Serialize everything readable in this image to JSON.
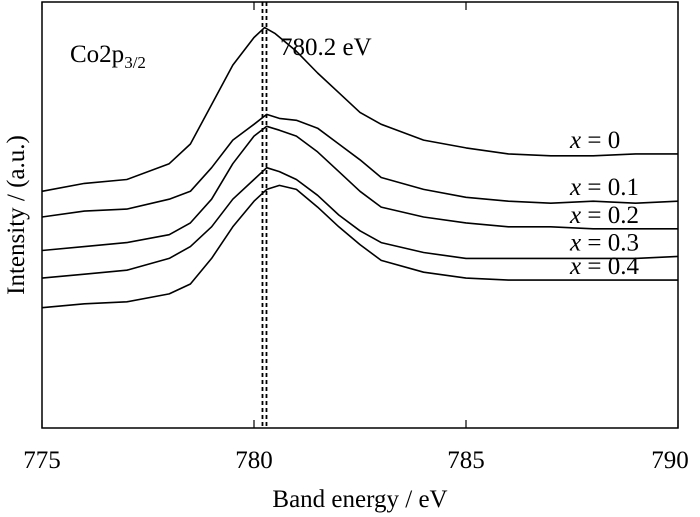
{
  "chart_data": {
    "type": "line",
    "title": "",
    "xlabel": "Band energy / eV",
    "ylabel": "Intensity / (a.u.)",
    "xlim": [
      775,
      790
    ],
    "ylim": [
      0,
      10.8
    ],
    "xticks": [
      "775",
      "780",
      "785",
      "790"
    ],
    "y_tick_labels_shown": false,
    "grid": false,
    "annotations": {
      "element_label": "Co2p",
      "element_subscript": "3/2",
      "peak_label": "780.2 eV",
      "peak_position": 780.2
    },
    "series": [
      {
        "label_var": "x",
        "label_value": "= 0",
        "x": [
          775,
          776,
          777,
          778,
          778.5,
          779,
          779.5,
          780,
          780.25,
          780.5,
          781,
          781.5,
          782,
          782.5,
          783,
          784,
          785,
          786,
          787,
          788,
          789,
          790
        ],
        "y": [
          6.0,
          6.2,
          6.3,
          6.7,
          7.2,
          8.2,
          9.2,
          9.9,
          10.15,
          10.0,
          9.55,
          9.0,
          8.5,
          8.0,
          7.7,
          7.3,
          7.1,
          6.95,
          6.9,
          6.9,
          6.95,
          6.95
        ]
      },
      {
        "label_var": "x",
        "label_value": "= 0.1",
        "x": [
          775,
          776,
          777,
          778,
          778.5,
          779,
          779.5,
          780,
          780.3,
          780.6,
          781,
          781.5,
          782,
          782.5,
          783,
          784,
          785,
          786,
          787,
          788,
          789,
          790
        ],
        "y": [
          5.35,
          5.5,
          5.55,
          5.8,
          6.0,
          6.6,
          7.3,
          7.7,
          7.95,
          7.85,
          7.8,
          7.6,
          7.2,
          6.8,
          6.35,
          6.05,
          5.85,
          5.75,
          5.7,
          5.75,
          5.7,
          5.75
        ]
      },
      {
        "label_var": "x",
        "label_value": "= 0.2",
        "x": [
          775,
          776,
          777,
          778,
          778.5,
          779,
          779.5,
          780,
          780.3,
          780.6,
          781,
          781.5,
          782,
          782.5,
          783,
          784,
          785,
          786,
          787,
          788,
          789,
          790
        ],
        "y": [
          4.5,
          4.6,
          4.7,
          4.9,
          5.2,
          5.8,
          6.7,
          7.4,
          7.65,
          7.55,
          7.4,
          7.0,
          6.5,
          6.0,
          5.6,
          5.35,
          5.2,
          5.1,
          5.1,
          5.05,
          5.05,
          5.05
        ]
      },
      {
        "label_var": "x",
        "label_value": "= 0.3",
        "x": [
          775,
          776,
          777,
          778,
          778.5,
          779,
          779.5,
          780,
          780.3,
          780.6,
          781,
          781.5,
          782,
          782.5,
          783,
          784,
          785,
          786,
          787,
          788,
          789,
          790
        ],
        "y": [
          3.8,
          3.9,
          4.0,
          4.3,
          4.6,
          5.1,
          5.8,
          6.3,
          6.6,
          6.5,
          6.3,
          5.9,
          5.4,
          5.0,
          4.7,
          4.45,
          4.3,
          4.3,
          4.3,
          4.3,
          4.3,
          4.35
        ]
      },
      {
        "label_var": "x",
        "label_value": "= 0.4",
        "x": [
          775,
          776,
          777,
          778,
          778.5,
          779,
          779.5,
          780,
          780.3,
          780.6,
          781,
          781.5,
          782,
          782.5,
          783,
          784,
          785,
          786,
          787,
          788,
          789,
          790
        ],
        "y": [
          3.05,
          3.15,
          3.2,
          3.4,
          3.65,
          4.3,
          5.1,
          5.75,
          6.05,
          6.15,
          6.05,
          5.6,
          5.1,
          4.65,
          4.25,
          3.95,
          3.8,
          3.75,
          3.75,
          3.75,
          3.75,
          3.75
        ]
      }
    ]
  }
}
